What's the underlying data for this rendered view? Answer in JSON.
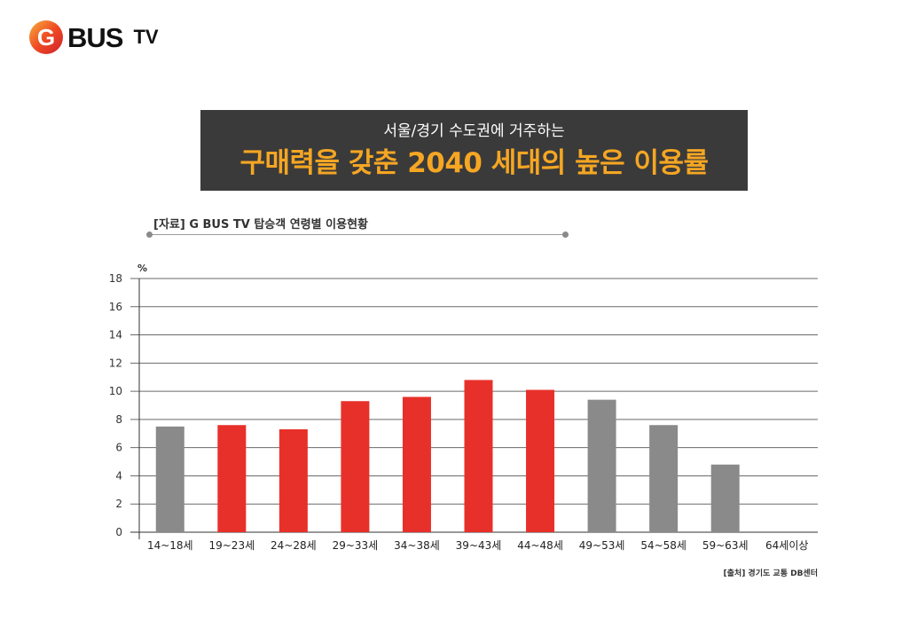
{
  "logo": {
    "mark_letter": "G",
    "bus": "BUS",
    "tv": "TV"
  },
  "banner": {
    "subtitle": "서울/경기 수도권에 거주하는",
    "title": "구매력을 갖춘 2040 세대의 높은 이용률"
  },
  "source_label": "[자료] G BUS TV 탑승객 연령별 이용현황",
  "credit": "[출처] 경기도 교통 DB센터",
  "colors": {
    "highlight": "#e8302a",
    "neutral": "#8a8a8a",
    "banner_bg": "#3a3a3a",
    "banner_title": "#f5a623"
  },
  "chart_data": {
    "type": "bar",
    "title": "",
    "xlabel": "",
    "ylabel": "%",
    "ylim": [
      0,
      18
    ],
    "yticks": [
      0,
      2,
      4,
      6,
      8,
      10,
      12,
      14,
      16,
      18
    ],
    "grid": true,
    "categories": [
      "14~18세",
      "19~23세",
      "24~28세",
      "29~33세",
      "34~38세",
      "39~43세",
      "44~48세",
      "49~53세",
      "54~58세",
      "59~63세",
      "64세이상"
    ],
    "values": [
      7.5,
      7.6,
      7.3,
      9.3,
      9.6,
      10.8,
      10.1,
      9.4,
      7.6,
      4.8,
      0
    ],
    "highlighted": [
      false,
      true,
      true,
      true,
      true,
      true,
      true,
      false,
      false,
      false,
      false
    ]
  }
}
